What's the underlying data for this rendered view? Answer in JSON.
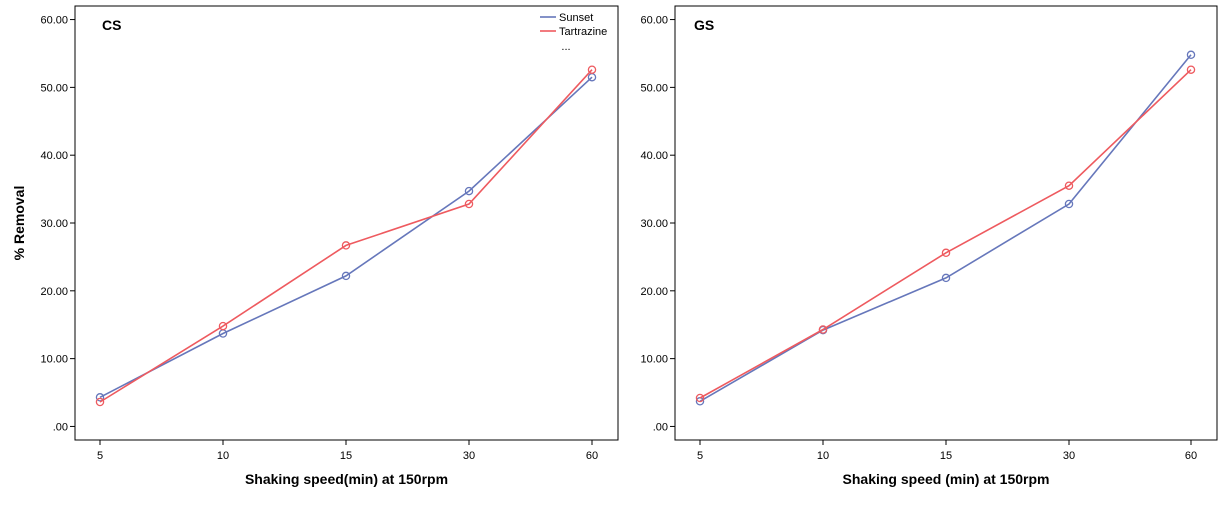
{
  "chart_data": [
    {
      "type": "line",
      "title": "CS",
      "xlabel": "Shaking speed(min) at 150rpm",
      "ylabel": "% Removal",
      "categories": [
        "5",
        "10",
        "15",
        "30",
        "60"
      ],
      "ylim": [
        -2,
        62
      ],
      "yticks": [
        ".00",
        "10.00",
        "20.00",
        "30.00",
        "40.00",
        "50.00",
        "60.00"
      ],
      "series": [
        {
          "name": "Sunset",
          "color": "#6677bb",
          "values": [
            4.3,
            13.7,
            22.2,
            34.7,
            51.5
          ]
        },
        {
          "name": "Tartrazine",
          "color": "#ee5a5f",
          "values": [
            3.6,
            14.8,
            26.7,
            32.8,
            52.6
          ]
        }
      ],
      "legend": {
        "position": "top-right",
        "items": [
          "Sunset",
          "Tartrazine"
        ],
        "more": "..."
      },
      "grid": false
    },
    {
      "type": "line",
      "title": "GS",
      "xlabel": "Shaking speed (min) at 150rpm",
      "ylabel": "",
      "categories": [
        "5",
        "10",
        "15",
        "30",
        "60"
      ],
      "ylim": [
        -2,
        62
      ],
      "yticks": [
        ".00",
        "10.00",
        "20.00",
        "30.00",
        "40.00",
        "50.00",
        "60.00"
      ],
      "series": [
        {
          "name": "Sunset",
          "color": "#6677bb",
          "values": [
            3.7,
            14.2,
            21.9,
            32.8,
            54.8
          ]
        },
        {
          "name": "Tartrazine",
          "color": "#ee5a5f",
          "values": [
            4.2,
            14.3,
            25.6,
            35.5,
            52.6
          ]
        }
      ],
      "grid": false
    }
  ]
}
